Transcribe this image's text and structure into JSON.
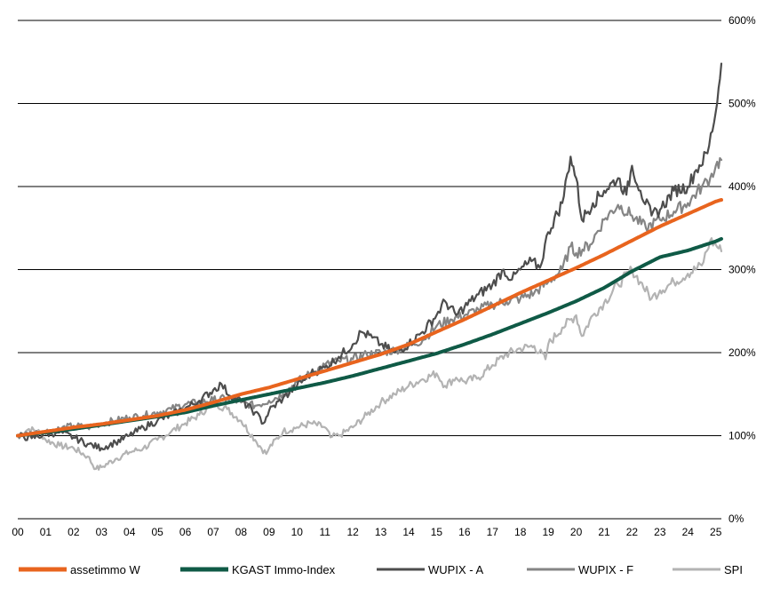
{
  "chart_data": {
    "type": "line",
    "title": "",
    "xlabel": "",
    "ylabel": "",
    "x_ticks": [
      "00",
      "01",
      "02",
      "03",
      "04",
      "05",
      "06",
      "07",
      "08",
      "09",
      "10",
      "11",
      "12",
      "13",
      "14",
      "15",
      "16",
      "17",
      "18",
      "19",
      "20",
      "21",
      "22",
      "23",
      "24",
      "25"
    ],
    "y_ticks": [
      "0%",
      "100%",
      "200%",
      "300%",
      "400%",
      "500%",
      "600%"
    ],
    "xlim": [
      2000,
      2025.2
    ],
    "ylim": [
      0,
      600
    ],
    "grid": "horizontal",
    "legend_position": "bottom",
    "series": [
      {
        "name": "assetimmo W",
        "color": "#E8641E",
        "style": "thick",
        "points": [
          [
            2000,
            100
          ],
          [
            2001,
            105
          ],
          [
            2002,
            110
          ],
          [
            2003,
            114
          ],
          [
            2004,
            119
          ],
          [
            2005,
            124
          ],
          [
            2006,
            131
          ],
          [
            2007,
            140
          ],
          [
            2008,
            150
          ],
          [
            2009,
            158
          ],
          [
            2010,
            168
          ],
          [
            2011,
            178
          ],
          [
            2012,
            188
          ],
          [
            2013,
            198
          ],
          [
            2014,
            210
          ],
          [
            2015,
            225
          ],
          [
            2016,
            240
          ],
          [
            2017,
            256
          ],
          [
            2018,
            272
          ],
          [
            2019,
            287
          ],
          [
            2020,
            302
          ],
          [
            2021,
            318
          ],
          [
            2022,
            335
          ],
          [
            2023,
            352
          ],
          [
            2024,
            367
          ],
          [
            2025,
            382
          ],
          [
            2025.2,
            384
          ]
        ]
      },
      {
        "name": "KGAST Immo-Index",
        "color": "#0F5A46",
        "style": "thick",
        "points": [
          [
            2000,
            100
          ],
          [
            2001,
            104
          ],
          [
            2002,
            108
          ],
          [
            2003,
            113
          ],
          [
            2004,
            118
          ],
          [
            2005,
            123
          ],
          [
            2006,
            128
          ],
          [
            2007,
            136
          ],
          [
            2008,
            143
          ],
          [
            2009,
            150
          ],
          [
            2010,
            157
          ],
          [
            2011,
            164
          ],
          [
            2012,
            172
          ],
          [
            2013,
            181
          ],
          [
            2014,
            190
          ],
          [
            2015,
            199
          ],
          [
            2016,
            210
          ],
          [
            2017,
            222
          ],
          [
            2018,
            235
          ],
          [
            2019,
            248
          ],
          [
            2020,
            262
          ],
          [
            2021,
            278
          ],
          [
            2022,
            298
          ],
          [
            2023,
            315
          ],
          [
            2024,
            323
          ],
          [
            2025,
            334
          ],
          [
            2025.2,
            337
          ]
        ]
      },
      {
        "name": "WUPIX - A",
        "color": "#4D4D4D",
        "style": "thin",
        "points": [
          [
            2000,
            100
          ],
          [
            2000.5,
            97
          ],
          [
            2001,
            102
          ],
          [
            2001.5,
            104
          ],
          [
            2002,
            98
          ],
          [
            2002.5,
            90
          ],
          [
            2003,
            85
          ],
          [
            2003.5,
            92
          ],
          [
            2004,
            100
          ],
          [
            2004.5,
            110
          ],
          [
            2005,
            118
          ],
          [
            2005.5,
            125
          ],
          [
            2006,
            133
          ],
          [
            2006.5,
            142
          ],
          [
            2007,
            155
          ],
          [
            2007.3,
            162
          ],
          [
            2007.6,
            148
          ],
          [
            2008,
            142
          ],
          [
            2008.5,
            128
          ],
          [
            2008.8,
            115
          ],
          [
            2009,
            130
          ],
          [
            2009.5,
            145
          ],
          [
            2010,
            160
          ],
          [
            2010.5,
            175
          ],
          [
            2011,
            182
          ],
          [
            2011.5,
            195
          ],
          [
            2012,
            210
          ],
          [
            2012.3,
            225
          ],
          [
            2012.7,
            218
          ],
          [
            2013,
            210
          ],
          [
            2013.5,
            200
          ],
          [
            2014,
            210
          ],
          [
            2014.5,
            225
          ],
          [
            2015,
            245
          ],
          [
            2015.3,
            262
          ],
          [
            2015.7,
            245
          ],
          [
            2016,
            255
          ],
          [
            2016.5,
            270
          ],
          [
            2017,
            282
          ],
          [
            2017.4,
            300
          ],
          [
            2017.7,
            288
          ],
          [
            2018,
            300
          ],
          [
            2018.4,
            310
          ],
          [
            2018.7,
            302
          ],
          [
            2019,
            345
          ],
          [
            2019.5,
            380
          ],
          [
            2019.8,
            436
          ],
          [
            2020,
            410
          ],
          [
            2020.2,
            360
          ],
          [
            2020.6,
            380
          ],
          [
            2021,
            395
          ],
          [
            2021.5,
            410
          ],
          [
            2021.8,
            390
          ],
          [
            2022,
            425
          ],
          [
            2022.3,
            395
          ],
          [
            2022.7,
            365
          ],
          [
            2023,
            372
          ],
          [
            2023.5,
            395
          ],
          [
            2024,
            400
          ],
          [
            2024.3,
            420
          ],
          [
            2024.7,
            440
          ],
          [
            2025,
            490
          ],
          [
            2025.2,
            548
          ]
        ]
      },
      {
        "name": "WUPIX - F",
        "color": "#858585",
        "style": "thin",
        "points": [
          [
            2000,
            100
          ],
          [
            2000.5,
            103
          ],
          [
            2001,
            105
          ],
          [
            2001.5,
            108
          ],
          [
            2002,
            112
          ],
          [
            2002.5,
            110
          ],
          [
            2003,
            115
          ],
          [
            2003.5,
            118
          ],
          [
            2004,
            122
          ],
          [
            2004.5,
            124
          ],
          [
            2005,
            128
          ],
          [
            2005.5,
            132
          ],
          [
            2006,
            138
          ],
          [
            2006.5,
            140
          ],
          [
            2007,
            143
          ],
          [
            2007.5,
            145
          ],
          [
            2008,
            140
          ],
          [
            2008.5,
            136
          ],
          [
            2009,
            142
          ],
          [
            2009.5,
            150
          ],
          [
            2010,
            165
          ],
          [
            2010.5,
            175
          ],
          [
            2011,
            185
          ],
          [
            2011.5,
            190
          ],
          [
            2012,
            192
          ],
          [
            2012.5,
            198
          ],
          [
            2013,
            200
          ],
          [
            2013.5,
            203
          ],
          [
            2014,
            208
          ],
          [
            2014.5,
            215
          ],
          [
            2015,
            232
          ],
          [
            2015.5,
            240
          ],
          [
            2016,
            245
          ],
          [
            2016.5,
            252
          ],
          [
            2017,
            258
          ],
          [
            2017.5,
            262
          ],
          [
            2018,
            265
          ],
          [
            2018.5,
            272
          ],
          [
            2019,
            285
          ],
          [
            2019.5,
            300
          ],
          [
            2019.8,
            328
          ],
          [
            2020,
            320
          ],
          [
            2020.5,
            330
          ],
          [
            2021,
            360
          ],
          [
            2021.5,
            378
          ],
          [
            2022,
            365
          ],
          [
            2022.5,
            350
          ],
          [
            2023,
            360
          ],
          [
            2023.5,
            370
          ],
          [
            2024,
            380
          ],
          [
            2024.5,
            400
          ],
          [
            2024.8,
            410
          ],
          [
            2025,
            425
          ],
          [
            2025.2,
            432
          ]
        ]
      },
      {
        "name": "SPI",
        "color": "#B3B3B3",
        "style": "thin",
        "points": [
          [
            2000,
            100
          ],
          [
            2000.4,
            108
          ],
          [
            2000.8,
            104
          ],
          [
            2001,
            95
          ],
          [
            2001.5,
            88
          ],
          [
            2002,
            85
          ],
          [
            2002.5,
            75
          ],
          [
            2002.8,
            60
          ],
          [
            2003,
            62
          ],
          [
            2003.5,
            72
          ],
          [
            2004,
            80
          ],
          [
            2004.5,
            85
          ],
          [
            2005,
            95
          ],
          [
            2005.5,
            105
          ],
          [
            2006,
            115
          ],
          [
            2006.5,
            125
          ],
          [
            2007,
            140
          ],
          [
            2007.5,
            132
          ],
          [
            2008,
            118
          ],
          [
            2008.5,
            95
          ],
          [
            2008.9,
            78
          ],
          [
            2009,
            85
          ],
          [
            2009.5,
            105
          ],
          [
            2010,
            110
          ],
          [
            2010.5,
            115
          ],
          [
            2011,
            110
          ],
          [
            2011.2,
            98
          ],
          [
            2011.5,
            100
          ],
          [
            2012,
            110
          ],
          [
            2012.5,
            125
          ],
          [
            2013,
            140
          ],
          [
            2013.5,
            150
          ],
          [
            2014,
            160
          ],
          [
            2014.5,
            168
          ],
          [
            2015,
            175
          ],
          [
            2015.3,
            160
          ],
          [
            2015.7,
            170
          ],
          [
            2016,
            165
          ],
          [
            2016.5,
            170
          ],
          [
            2017,
            185
          ],
          [
            2017.5,
            198
          ],
          [
            2018,
            205
          ],
          [
            2018.5,
            208
          ],
          [
            2018.9,
            192
          ],
          [
            2019,
            210
          ],
          [
            2019.5,
            230
          ],
          [
            2020,
            245
          ],
          [
            2020.2,
            220
          ],
          [
            2020.6,
            245
          ],
          [
            2021,
            260
          ],
          [
            2021.5,
            282
          ],
          [
            2022,
            300
          ],
          [
            2022.3,
            285
          ],
          [
            2022.7,
            265
          ],
          [
            2023,
            275
          ],
          [
            2023.5,
            285
          ],
          [
            2024,
            295
          ],
          [
            2024.5,
            305
          ],
          [
            2024.8,
            335
          ],
          [
            2025,
            330
          ],
          [
            2025.2,
            322
          ]
        ]
      }
    ]
  }
}
